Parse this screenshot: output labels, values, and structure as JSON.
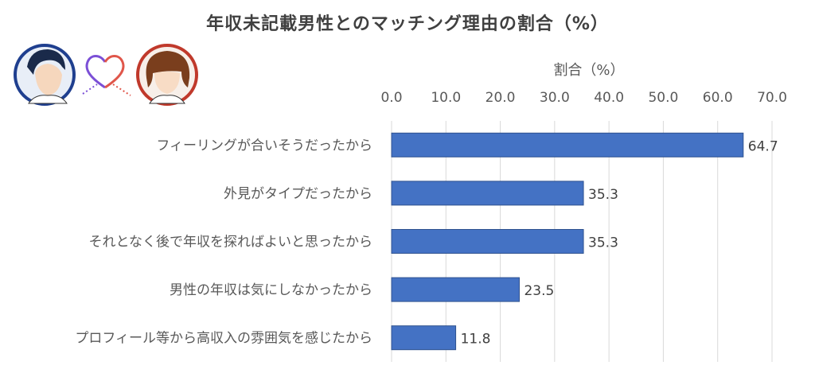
{
  "chart_data": {
    "type": "bar",
    "orientation": "horizontal",
    "title": "年収未記載男性とのマッチング理由の割合（%）",
    "xlabel": "割合（%）",
    "xlim": [
      0,
      70
    ],
    "xticks": [
      0,
      10,
      20,
      30,
      40,
      50,
      60,
      70
    ],
    "xtick_labels": [
      "0.0",
      "10.0",
      "20.0",
      "30.0",
      "40.0",
      "50.0",
      "60.0",
      "70.0"
    ],
    "categories": [
      "フィーリングが合いそうだったから",
      "外見がタイプだったから",
      "それとなく後で年収を探ればよいと思ったから",
      "男性の年収は気にしなかったから",
      "プロフィール等から高収入の雰囲気を感じたから"
    ],
    "values": [
      64.7,
      35.3,
      35.3,
      23.5,
      11.8
    ],
    "value_labels": [
      "64.7",
      "35.3",
      "35.3",
      "23.5",
      "11.8"
    ],
    "bar_color": "#4472c4",
    "grid": true
  },
  "colors": {
    "bar_fill": "#4472c4",
    "bar_edge": "#2f528f",
    "grid": "#d9d9d9",
    "male_ring": "#1f3f8f",
    "female_ring": "#c0392b",
    "heart_left": "#7b4fd6",
    "heart_right": "#e0564a"
  },
  "illustration": {
    "icons": [
      "man-avatar-icon",
      "heart-icon",
      "woman-avatar-icon"
    ]
  }
}
